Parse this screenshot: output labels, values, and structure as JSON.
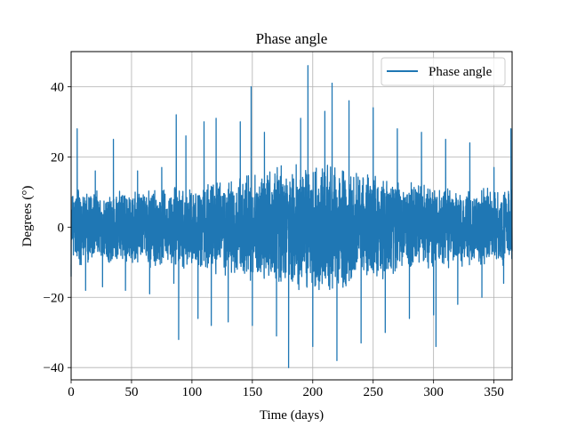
{
  "chart_data": {
    "type": "line",
    "title": "Phase angle",
    "xlabel": "Time (days)",
    "ylabel": "Degrees (°)",
    "xlim": [
      0,
      365
    ],
    "ylim": [
      -43.5,
      50
    ],
    "xticks": [
      0,
      50,
      100,
      150,
      200,
      250,
      300,
      350
    ],
    "yticks": [
      -40,
      -20,
      0,
      20,
      40
    ],
    "xtick_labels": [
      "0",
      "50",
      "100",
      "150",
      "200",
      "250",
      "300",
      "350"
    ],
    "ytick_labels": [
      "−40",
      "−20",
      "0",
      "20",
      "40"
    ],
    "grid": true,
    "legend_position": "upper right",
    "series": [
      {
        "name": "Phase angle",
        "color": "#1f77b4",
        "x": [
          0,
          5,
          12,
          20,
          26,
          35,
          45,
          55,
          65,
          75,
          85,
          87,
          89,
          95,
          105,
          110,
          116,
          120,
          130,
          140,
          149,
          150,
          160,
          170,
          180,
          190,
          196,
          200,
          210,
          216,
          220,
          230,
          240,
          250,
          260,
          270,
          280,
          290,
          300,
          302,
          310,
          320,
          330,
          340,
          350,
          358,
          364
        ],
        "values": [
          -14,
          28,
          -18,
          16,
          -17,
          25,
          -18,
          16,
          -19,
          17,
          -16,
          32,
          -32,
          26,
          -26,
          30,
          -28,
          31,
          -27,
          30,
          40,
          -28,
          27,
          -31,
          -40,
          31,
          46,
          -34,
          33,
          41,
          -38,
          36,
          -33,
          34,
          -30,
          28,
          -26,
          27,
          -25,
          -34,
          25,
          -22,
          24,
          -20,
          17,
          -16,
          28
        ],
        "envelope_note": ""
      }
    ]
  }
}
